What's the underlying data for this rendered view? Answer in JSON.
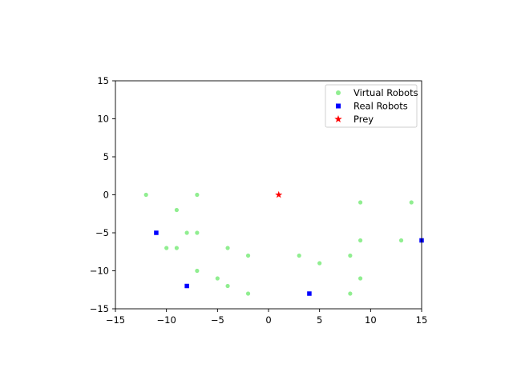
{
  "chart_data": {
    "type": "scatter",
    "title": "",
    "xlabel": "",
    "ylabel": "",
    "xlim": [
      -15,
      15
    ],
    "ylim": [
      -15,
      15
    ],
    "xticks": [
      -15,
      -10,
      -5,
      0,
      5,
      10,
      15
    ],
    "yticks": [
      -15,
      -10,
      -5,
      0,
      5,
      10,
      15
    ],
    "grid": false,
    "legend_position": "top-right",
    "series": [
      {
        "name": "Virtual Robots",
        "marker": "circle",
        "color": "#90ee90",
        "points": [
          [
            -12,
            0
          ],
          [
            -7,
            0
          ],
          [
            -9,
            -2
          ],
          [
            -8,
            -5
          ],
          [
            -7,
            -5
          ],
          [
            -10,
            -7
          ],
          [
            -9,
            -7
          ],
          [
            -4,
            -7
          ],
          [
            -2,
            -8
          ],
          [
            -7,
            -10
          ],
          [
            -5,
            -11
          ],
          [
            -4,
            -12
          ],
          [
            -2,
            -13
          ],
          [
            3,
            -8
          ],
          [
            5,
            -9
          ],
          [
            8,
            -8
          ],
          [
            9,
            -1
          ],
          [
            9,
            -6
          ],
          [
            9,
            -11
          ],
          [
            8,
            -13
          ],
          [
            13,
            -6
          ],
          [
            14,
            -1
          ]
        ]
      },
      {
        "name": "Real Robots",
        "marker": "square",
        "color": "#0000ff",
        "points": [
          [
            -11,
            -5
          ],
          [
            -8,
            -12
          ],
          [
            4,
            -13
          ],
          [
            15,
            -6
          ]
        ]
      },
      {
        "name": "Prey",
        "marker": "star",
        "color": "#ff0000",
        "points": [
          [
            1,
            0
          ]
        ]
      }
    ]
  }
}
